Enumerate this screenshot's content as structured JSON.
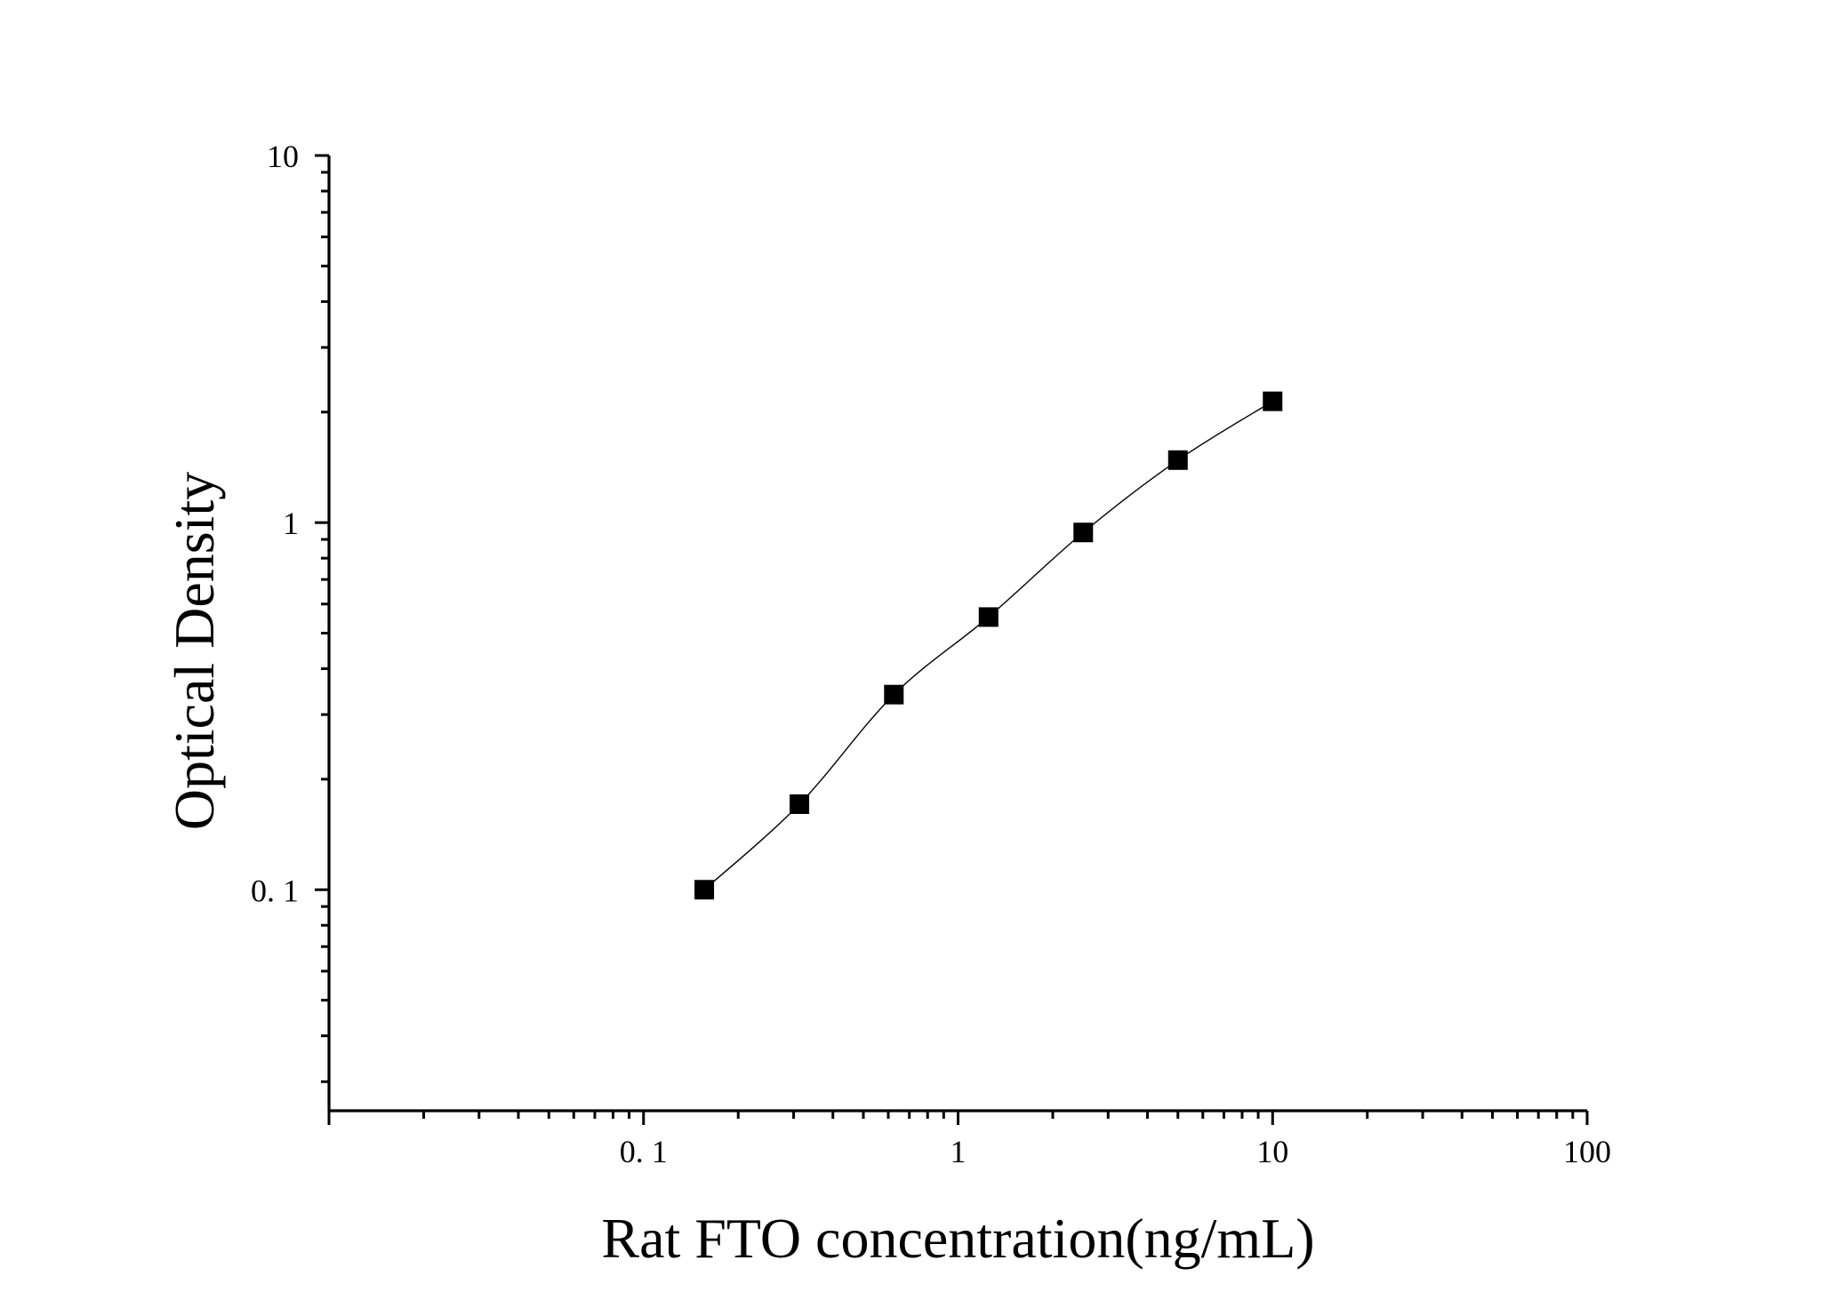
{
  "chart_data": {
    "type": "scatter",
    "title": "",
    "xlabel": "Rat FTO concentration(ng/mL)",
    "ylabel": "Optical Density",
    "x_scale": "log",
    "y_scale": "log",
    "xlim": [
      0.01,
      100
    ],
    "ylim": [
      0.025,
      10
    ],
    "x_tick_labels": [
      {
        "value": 0.1,
        "label": "0. 1"
      },
      {
        "value": 1,
        "label": "1"
      },
      {
        "value": 10,
        "label": "10"
      },
      {
        "value": 100,
        "label": "100"
      }
    ],
    "y_tick_labels": [
      {
        "value": 0.1,
        "label": "0. 1"
      },
      {
        "value": 1,
        "label": "1"
      },
      {
        "value": 10,
        "label": "10"
      }
    ],
    "grid": false,
    "legend": "none",
    "marker": "square",
    "color": "#000000",
    "series": [
      {
        "x": [
          0.156,
          0.313,
          0.625,
          1.25,
          2.5,
          5,
          10
        ],
        "y": [
          0.1,
          0.171,
          0.34,
          0.553,
          0.94,
          1.48,
          2.14
        ]
      }
    ],
    "fit_curve": true
  }
}
